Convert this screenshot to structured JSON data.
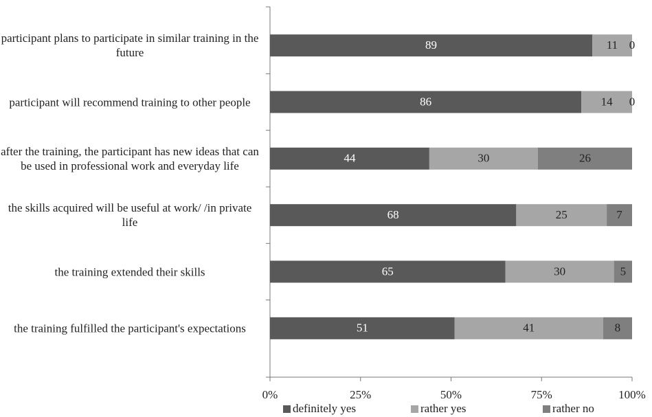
{
  "chart_data": {
    "type": "stacked-barh",
    "categories": [
      "participant plans to participate in similar training in the future",
      "participant will recommend training to other people",
      "after the training, the participant has new ideas that can be used in professional work and everyday life",
      "the skills acquired will be useful at work/ /in private life",
      "the training extended their skills",
      "the training fulfilled the participant's expectations"
    ],
    "series": [
      {
        "name": "definitely yes",
        "color": "#595959",
        "values": [
          89,
          86,
          44,
          68,
          65,
          51
        ]
      },
      {
        "name": "rather yes",
        "color": "#a6a6a6",
        "values": [
          11,
          14,
          30,
          25,
          30,
          41
        ]
      },
      {
        "name": "rather no",
        "color": "#7f7f7f",
        "values": [
          0,
          0,
          26,
          7,
          5,
          8
        ]
      }
    ],
    "xlim": [
      0,
      100
    ],
    "xticks": [
      {
        "value": 0,
        "label": "0%"
      },
      {
        "value": 25,
        "label": "25%"
      },
      {
        "value": 50,
        "label": "50%"
      },
      {
        "value": 75,
        "label": "75%"
      },
      {
        "value": 100,
        "label": "100%"
      }
    ],
    "legend": "bottom"
  }
}
